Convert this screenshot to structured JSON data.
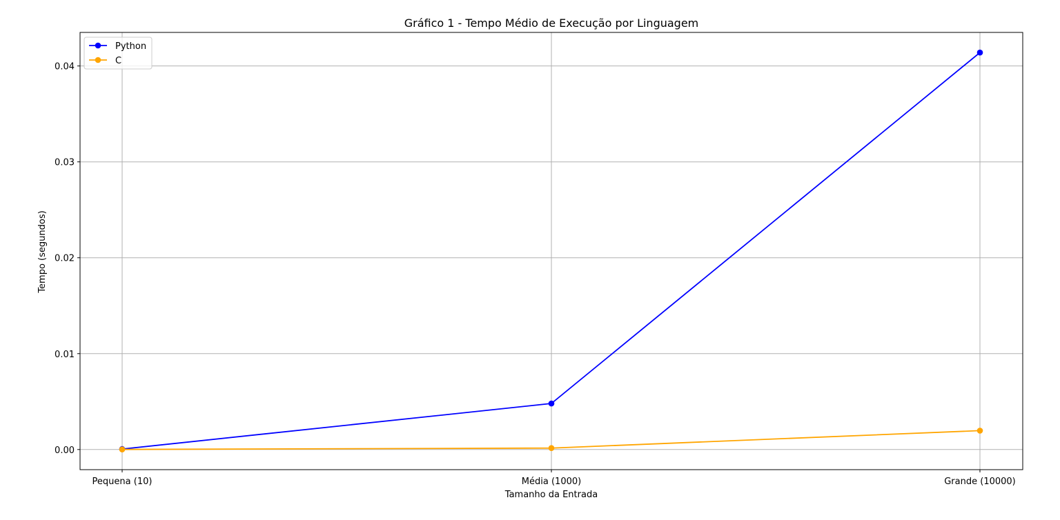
{
  "chart_data": {
    "type": "line",
    "title": "Gráfico 1 - Tempo Médio de Execução por Linguagem",
    "xlabel": "Tamanho da Entrada",
    "ylabel": "Tempo (segundos)",
    "categories": [
      "Pequena (10)",
      "Média (1000)",
      "Grande (10000)"
    ],
    "yticks": [
      0.0,
      0.01,
      0.02,
      0.03,
      0.04
    ],
    "ytick_labels": [
      "0.00",
      "0.01",
      "0.02",
      "0.03",
      "0.04"
    ],
    "ylim": [
      -0.0021,
      0.0435
    ],
    "grid": true,
    "legend": "top-left",
    "series": [
      {
        "name": "Python",
        "color": "#0000ff",
        "marker": "circle",
        "values": [
          5e-05,
          0.0048,
          0.0414
        ]
      },
      {
        "name": "C",
        "color": "#ffa500",
        "marker": "circle",
        "values": [
          1e-05,
          0.00015,
          0.00197
        ]
      }
    ]
  }
}
